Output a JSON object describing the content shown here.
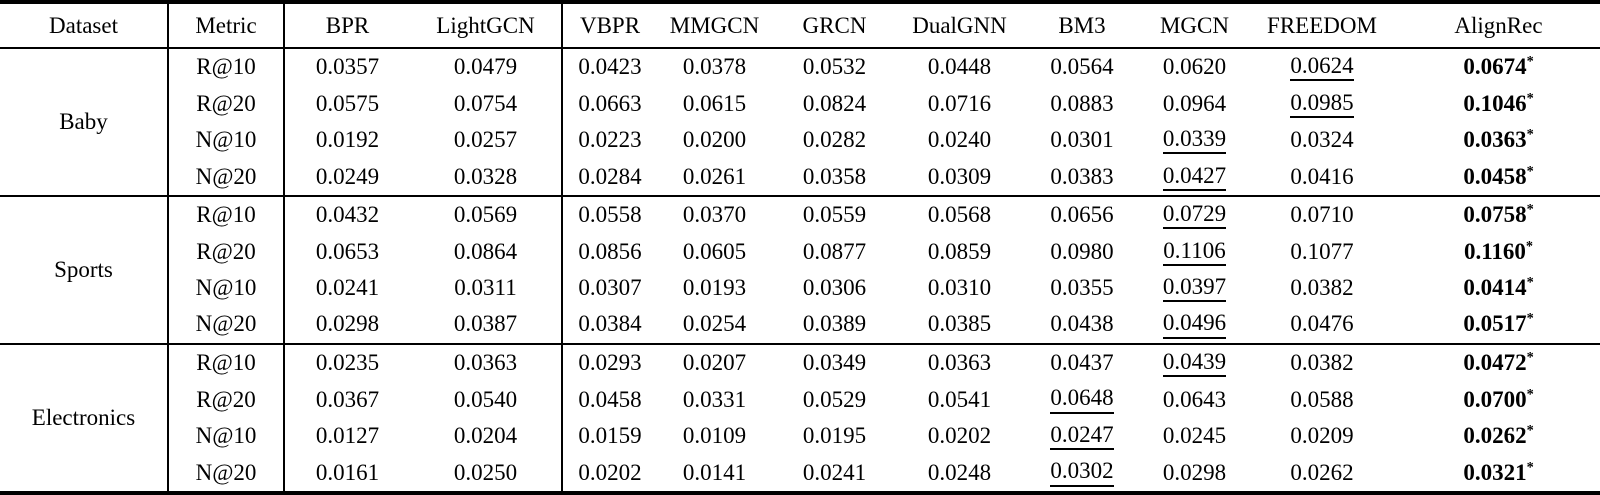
{
  "table": {
    "header": {
      "dataset": "Dataset",
      "metric": "Metric",
      "models": [
        "BPR",
        "LightGCN",
        "VBPR",
        "MMGCN",
        "GRCN",
        "DualGNN",
        "BM3",
        "MGCN",
        "FREEDOM",
        "AlignRec"
      ]
    },
    "best_marker": "*",
    "groups": [
      {
        "dataset": "Baby",
        "rows": [
          {
            "metric": "R@10",
            "values": [
              "0.0357",
              "0.0479",
              "0.0423",
              "0.0378",
              "0.0532",
              "0.0448",
              "0.0564",
              "0.0620",
              "0.0624",
              "0.0674"
            ],
            "second_best": 8,
            "best": 9
          },
          {
            "metric": "R@20",
            "values": [
              "0.0575",
              "0.0754",
              "0.0663",
              "0.0615",
              "0.0824",
              "0.0716",
              "0.0883",
              "0.0964",
              "0.0985",
              "0.1046"
            ],
            "second_best": 8,
            "best": 9
          },
          {
            "metric": "N@10",
            "values": [
              "0.0192",
              "0.0257",
              "0.0223",
              "0.0200",
              "0.0282",
              "0.0240",
              "0.0301",
              "0.0339",
              "0.0324",
              "0.0363"
            ],
            "second_best": 7,
            "best": 9
          },
          {
            "metric": "N@20",
            "values": [
              "0.0249",
              "0.0328",
              "0.0284",
              "0.0261",
              "0.0358",
              "0.0309",
              "0.0383",
              "0.0427",
              "0.0416",
              "0.0458"
            ],
            "second_best": 7,
            "best": 9
          }
        ]
      },
      {
        "dataset": "Sports",
        "rows": [
          {
            "metric": "R@10",
            "values": [
              "0.0432",
              "0.0569",
              "0.0558",
              "0.0370",
              "0.0559",
              "0.0568",
              "0.0656",
              "0.0729",
              "0.0710",
              "0.0758"
            ],
            "second_best": 7,
            "best": 9
          },
          {
            "metric": "R@20",
            "values": [
              "0.0653",
              "0.0864",
              "0.0856",
              "0.0605",
              "0.0877",
              "0.0859",
              "0.0980",
              "0.1106",
              "0.1077",
              "0.1160"
            ],
            "second_best": 7,
            "best": 9
          },
          {
            "metric": "N@10",
            "values": [
              "0.0241",
              "0.0311",
              "0.0307",
              "0.0193",
              "0.0306",
              "0.0310",
              "0.0355",
              "0.0397",
              "0.0382",
              "0.0414"
            ],
            "second_best": 7,
            "best": 9
          },
          {
            "metric": "N@20",
            "values": [
              "0.0298",
              "0.0387",
              "0.0384",
              "0.0254",
              "0.0389",
              "0.0385",
              "0.0438",
              "0.0496",
              "0.0476",
              "0.0517"
            ],
            "second_best": 7,
            "best": 9
          }
        ]
      },
      {
        "dataset": "Electronics",
        "rows": [
          {
            "metric": "R@10",
            "values": [
              "0.0235",
              "0.0363",
              "0.0293",
              "0.0207",
              "0.0349",
              "0.0363",
              "0.0437",
              "0.0439",
              "0.0382",
              "0.0472"
            ],
            "second_best": 7,
            "best": 9
          },
          {
            "metric": "R@20",
            "values": [
              "0.0367",
              "0.0540",
              "0.0458",
              "0.0331",
              "0.0529",
              "0.0541",
              "0.0648",
              "0.0643",
              "0.0588",
              "0.0700"
            ],
            "second_best": 6,
            "best": 9
          },
          {
            "metric": "N@10",
            "values": [
              "0.0127",
              "0.0204",
              "0.0159",
              "0.0109",
              "0.0195",
              "0.0202",
              "0.0247",
              "0.0245",
              "0.0209",
              "0.0262"
            ],
            "second_best": 6,
            "best": 9
          },
          {
            "metric": "N@20",
            "values": [
              "0.0161",
              "0.0250",
              "0.0202",
              "0.0141",
              "0.0241",
              "0.0248",
              "0.0302",
              "0.0298",
              "0.0262",
              "0.0321"
            ],
            "second_best": 6,
            "best": 9
          }
        ]
      }
    ]
  }
}
